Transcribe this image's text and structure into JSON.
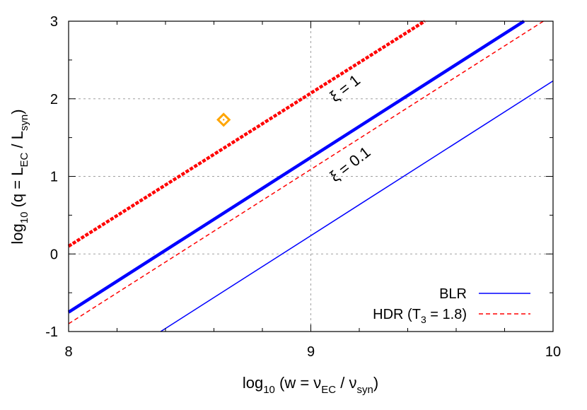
{
  "chart_data": {
    "type": "line",
    "xlabel": {
      "pre": "log",
      "sub1": "10",
      "mid": " (w = ν",
      "sub2": "EC",
      "mid2": " / ν",
      "sub3": "syn",
      "post": ")"
    },
    "ylabel": {
      "pre": "log",
      "sub1": "10",
      "mid": " (q = L",
      "sub2": "EC",
      "mid2": " / L",
      "sub3": "syn",
      "post": ")"
    },
    "xlim": [
      8,
      10
    ],
    "ylim": [
      -1,
      3
    ],
    "x_ticks": [
      "8",
      "9",
      "10"
    ],
    "y_ticks": [
      "-1",
      "0",
      "1",
      "2",
      "3"
    ],
    "grid": true,
    "legend_position": "bottom-right",
    "legend": [
      {
        "label": "BLR",
        "color": "#0000ff",
        "dash": "solid"
      },
      {
        "label_pre": "HDR (T",
        "label_sub": "3",
        "label_post": " = 1.8)",
        "color": "#ff0000",
        "dash": "dashed"
      }
    ],
    "series": [
      {
        "name": "BLR",
        "line": "BLR ξ = 1",
        "color": "#0000ff",
        "style": "solid-thick",
        "x": [
          8,
          9.88
        ],
        "y": [
          -0.75,
          3.0
        ]
      },
      {
        "name": "BLR",
        "line": "BLR ξ = 0.1",
        "color": "#0000ff",
        "style": "solid-thin",
        "x": [
          8.38,
          10
        ],
        "y": [
          -1.0,
          2.23
        ]
      },
      {
        "name": "HDR (T3 = 1.8)",
        "line": "HDR ξ = 1",
        "color": "#ff0000",
        "style": "dashed-thick",
        "x": [
          8,
          9.47
        ],
        "y": [
          0.1,
          3.0
        ]
      },
      {
        "name": "HDR (T3 = 1.8)",
        "line": "HDR ξ = 0.1",
        "color": "#ff0000",
        "style": "dashed-thin",
        "x": [
          8,
          9.96
        ],
        "y": [
          -0.9,
          3.0
        ]
      }
    ],
    "points": [
      {
        "x": 8.64,
        "y": 1.73,
        "marker": "diamond",
        "color": "#ffa500"
      }
    ],
    "annotations": [
      {
        "text": "ξ = 1",
        "x": 9.1,
        "y": 1.95,
        "angle": -38
      },
      {
        "text": "ξ = 0.1",
        "x": 9.1,
        "y": 0.92,
        "angle": -38
      }
    ]
  }
}
